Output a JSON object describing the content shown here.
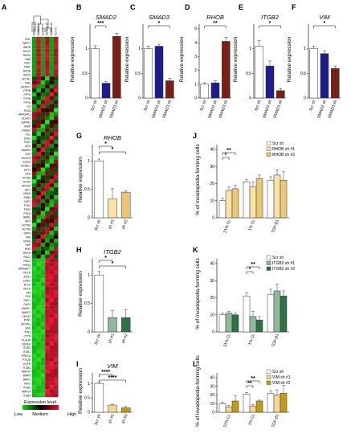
{
  "heatmap": {
    "label": "A",
    "columns": [
      "SMAD2 sh",
      "SMAD3 sh",
      "Scr sh",
      "SMAD2 sh",
      "SMAD3 sh",
      "Scr sh"
    ],
    "genes": [
      "SVIL",
      "WIPF1",
      "ABHD",
      "RHOC",
      "RHOA",
      "VMA",
      "FAK1",
      "PPEF",
      "RHOB",
      "SOCS",
      "ACTN1",
      "IPN2",
      "SH3PX1",
      "PTRN",
      "PTPN",
      "PTPN",
      "PTPN",
      "IT2",
      "PK2A",
      "ARHGAP1",
      "ELMO1",
      "DIAPH1",
      "VASP",
      "RASA2",
      "VCL",
      "CAV2",
      "PLD1",
      "SRC",
      "BAIAP2",
      "EGF",
      "MYOLS",
      "STAT3",
      "EPS8L1",
      "AKT1",
      "EPS",
      "ACTB3",
      "MYH9",
      "MYH10",
      "IGF1",
      "HRAS",
      "RAB4",
      "CAP1",
      "PTK2",
      "FRS2",
      "PTEN",
      "WASL",
      "IGF2",
      "ACTN2",
      "ACTN4",
      "DPP4",
      "FAP",
      "KRAS",
      "HAP",
      "RHO",
      "RHOH",
      "RAC1",
      "RAC2",
      "RHOQ",
      "ARHGEF7",
      "MYLK",
      "SOS1",
      "LIMK2",
      "MYL9",
      "MYLK",
      "VIM",
      "PXN",
      "RAC1",
      "RAC2",
      "MAPK1",
      "WASF2",
      "CDC42",
      "PFN1",
      "SRCIN1",
      "GSN",
      "TLN1",
      "CTTN",
      "PLAUR",
      "VEGFA",
      "ITGB2",
      "ITGB1",
      "PRKCA",
      "PTK2B",
      "EGFR",
      "ITGB3",
      "MMP14",
      "MMP9",
      "MMP2",
      "FGF2",
      "ITGA5",
      "MMP14",
      "ITGB3"
    ],
    "legend": {
      "title": "Expression level",
      "low": "Low",
      "medium": "Medium",
      "high": "High"
    }
  },
  "legends": {
    "scr": "Scr sh",
    "rhob1": "RHOB sh #1",
    "rhob2": "RHOB sh #2",
    "itgb1": "ITGB2 sh #1",
    "itgb2": "ITGB2 sh #2",
    "vim1": "VIM sh #1",
    "vim2": "VIM sh #2"
  },
  "chart_data": [
    {
      "panel": "B",
      "type": "bar",
      "title": "SMAD2",
      "ylabel": "Relative expression",
      "categories": [
        "Scr sh",
        "SMAD2 sh",
        "SMAD3 sh"
      ],
      "values": [
        1.0,
        0.3,
        1.25
      ],
      "errors": [
        0.06,
        0.03,
        0.06
      ],
      "colors": [
        "#ffffff",
        "#1d1e8c",
        "#7a1e1a"
      ],
      "ylim": [
        0,
        1.4
      ],
      "yticks": [
        0,
        0.5,
        1
      ],
      "sig": [
        {
          "from": 0,
          "to": 1,
          "text": "***"
        }
      ]
    },
    {
      "panel": "C",
      "type": "bar",
      "title": "SMAD3",
      "ylabel": "Relative expression",
      "categories": [
        "Scr sh",
        "SMAD2 sh",
        "SMAD3 sh"
      ],
      "values": [
        1.0,
        1.05,
        0.35
      ],
      "errors": [
        0.05,
        0.04,
        0.05
      ],
      "colors": [
        "#ffffff",
        "#1d1e8c",
        "#7a1e1a"
      ],
      "ylim": [
        0,
        1.4
      ],
      "yticks": [
        0,
        0.5,
        1
      ],
      "sig": [
        {
          "from": 0,
          "to": 2,
          "text": "*"
        }
      ]
    },
    {
      "panel": "D",
      "type": "bar",
      "title": "RHOB",
      "ylabel": "Relative expression",
      "categories": [
        "Scr sh",
        "SMAD2 sh",
        "SMAD3 sh"
      ],
      "values": [
        1.0,
        1.1,
        4.1
      ],
      "errors": [
        0.1,
        0.15,
        0.3
      ],
      "colors": [
        "#ffffff",
        "#1d1e8c",
        "#7a1e1a"
      ],
      "ylim": [
        0,
        5
      ],
      "yticks": [
        0,
        1,
        2,
        3,
        4,
        5
      ],
      "sig": [
        {
          "from": 0,
          "to": 2,
          "text": "**"
        }
      ]
    },
    {
      "panel": "E",
      "type": "bar",
      "title": "ITGB2",
      "ylabel": "Relative expression",
      "categories": [
        "Scr sh",
        "SMAD2 sh",
        "SMAD3 sh"
      ],
      "values": [
        1.05,
        0.65,
        0.15
      ],
      "errors": [
        0.12,
        0.1,
        0.04
      ],
      "colors": [
        "#ffffff",
        "#1d1e8c",
        "#7a1e1a"
      ],
      "ylim": [
        0,
        1.4
      ],
      "yticks": [
        0,
        0.5,
        1
      ],
      "sig": [
        {
          "from": 0,
          "to": 2,
          "text": "*"
        }
      ]
    },
    {
      "panel": "F",
      "type": "bar",
      "title": "VIM",
      "ylabel": "Relative expression",
      "categories": [
        "Scr sh",
        "SMAD2 sh",
        "SMAD3 sh"
      ],
      "values": [
        1.0,
        0.9,
        0.6
      ],
      "errors": [
        0.05,
        0.05,
        0.05
      ],
      "colors": [
        "#ffffff",
        "#1d1e8c",
        "#7a1e1a"
      ],
      "ylim": [
        0,
        1.4
      ],
      "yticks": [
        0,
        0.5,
        1
      ],
      "sig": [
        {
          "from": 0,
          "to": 2,
          "text": "*"
        }
      ]
    },
    {
      "panel": "G",
      "type": "bar",
      "title": "RHOB",
      "ylabel": "Relative expression",
      "categories": [
        "Scr sh",
        "sh #1",
        "sh #2"
      ],
      "values": [
        1.0,
        0.33,
        0.45
      ],
      "errors": [
        0.03,
        0.18,
        0.02
      ],
      "colors": [
        "#ffffff",
        "#f7e3a6",
        "#eac677"
      ],
      "ylim": [
        0,
        1.2
      ],
      "yticks": [
        0,
        0.5,
        1
      ],
      "sig": [
        {
          "from": 0,
          "to": 1,
          "text": "*"
        },
        {
          "from": 0,
          "to": 2,
          "text": "*"
        }
      ]
    },
    {
      "panel": "H",
      "type": "bar",
      "title": "ITGB2",
      "ylabel": "Relative expression",
      "categories": [
        "Scr sh",
        "sh #1",
        "sh #2"
      ],
      "values": [
        1.0,
        0.25,
        0.25
      ],
      "errors": [
        0.06,
        0.12,
        0.14
      ],
      "colors": [
        "#ffffff",
        "#8fb89b",
        "#2f7046"
      ],
      "ylim": [
        0,
        1.2
      ],
      "yticks": [
        0,
        0.5,
        1
      ],
      "sig": [
        {
          "from": 0,
          "to": 1,
          "text": "*"
        },
        {
          "from": 0,
          "to": 2,
          "text": "*"
        }
      ]
    },
    {
      "panel": "I",
      "type": "bar",
      "title": "VIM",
      "ylabel": "Relative expression",
      "categories": [
        "Scr sh",
        "sh #1",
        "sh #2"
      ],
      "values": [
        1.0,
        0.25,
        0.15
      ],
      "errors": [
        0.04,
        0.03,
        0.05
      ],
      "colors": [
        "#ffffff",
        "#f5d795",
        "#c29a1d"
      ],
      "ylim": [
        0,
        1.2
      ],
      "yticks": [
        0,
        0.5,
        1
      ],
      "sig": [
        {
          "from": 0,
          "to": 1,
          "text": "****"
        },
        {
          "from": 0,
          "to": 2,
          "text": "****"
        }
      ]
    },
    {
      "panel": "J",
      "type": "bar",
      "ylabel": "% of invadopodia-forming cells",
      "categories": [
        "21% O₂",
        "1% O₂",
        "TGF-β1"
      ],
      "series": [
        {
          "name": "Scr sh",
          "values": [
            10,
            21,
            22
          ],
          "errors": [
            1.5,
            1.5,
            2
          ]
        },
        {
          "name": "RHOB sh #1",
          "values": [
            16,
            18,
            25
          ],
          "errors": [
            2,
            3,
            3
          ]
        },
        {
          "name": "RHOB sh #2",
          "values": [
            17,
            23,
            22
          ],
          "errors": [
            2,
            2,
            5
          ]
        }
      ],
      "colors": [
        "#ffffff",
        "#f7e3a6",
        "#eac677"
      ],
      "ylim": [
        0,
        40
      ],
      "yticks": [
        0,
        10,
        20,
        30,
        40
      ],
      "sig": [
        {
          "cat": 0,
          "from": 0,
          "to": 1,
          "text": "*"
        },
        {
          "cat": 0,
          "from": 0,
          "to": 2,
          "text": "**"
        }
      ]
    },
    {
      "panel": "K",
      "type": "bar",
      "ylabel": "% of invadopodia-forming cells",
      "categories": [
        "21% O₂",
        "1% O₂",
        "TGF-β1"
      ],
      "series": [
        {
          "name": "Scr sh",
          "values": [
            10,
            21,
            22
          ],
          "errors": [
            1,
            2,
            3
          ]
        },
        {
          "name": "ITGB2 sh #1",
          "values": [
            11,
            9,
            24
          ],
          "errors": [
            1,
            3,
            4
          ]
        },
        {
          "name": "ITGB2 sh #2",
          "values": [
            10,
            7,
            21
          ],
          "errors": [
            1,
            2,
            3
          ]
        }
      ],
      "colors": [
        "#ffffff",
        "#8fb89b",
        "#2f7046"
      ],
      "ylim": [
        0,
        40
      ],
      "yticks": [
        0,
        10,
        20,
        30,
        40
      ],
      "sig": [
        {
          "cat": 1,
          "from": 0,
          "to": 1,
          "text": "*"
        },
        {
          "cat": 1,
          "from": 0,
          "to": 2,
          "text": "**"
        }
      ]
    },
    {
      "panel": "L",
      "type": "bar",
      "ylabel": "% of invadopodia-forming cells",
      "categories": [
        "21% O₂",
        "1% O₂",
        "TGF-β1"
      ],
      "series": [
        {
          "name": "Scr sh",
          "values": [
            10,
            21,
            22
          ],
          "errors": [
            1.5,
            2,
            3
          ]
        },
        {
          "name": "VIM sh #1",
          "values": [
            6,
            7,
            20
          ],
          "errors": [
            2,
            2,
            6
          ]
        },
        {
          "name": "VIM sh #2",
          "values": [
            13,
            13,
            22
          ],
          "errors": [
            6,
            1,
            9
          ]
        }
      ],
      "colors": [
        "#ffffff",
        "#f5d795",
        "#c29a1d"
      ],
      "ylim": [
        0,
        40
      ],
      "yticks": [
        0,
        10,
        20,
        30,
        40
      ],
      "sig": [
        {
          "cat": 1,
          "from": 0,
          "to": 1,
          "text": "**"
        },
        {
          "cat": 1,
          "from": 0,
          "to": 2,
          "text": "**"
        }
      ]
    }
  ]
}
